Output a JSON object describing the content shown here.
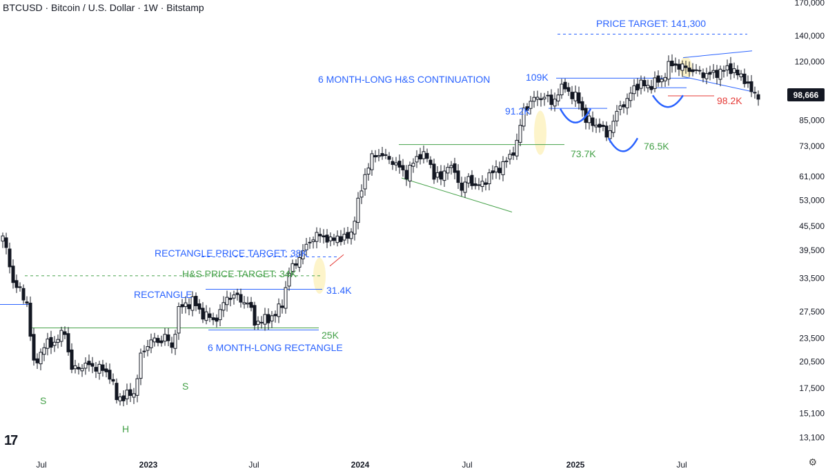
{
  "header": {
    "title": "BTCUSD · Bitcoin / U.S. Dollar · 1W · Bitstamp"
  },
  "colors": {
    "up": "#131722",
    "down": "#131722",
    "blue": "#2962ff",
    "green": "#43a047",
    "red": "#e53935",
    "highlight": "#fdf3c4"
  },
  "chart_data": {
    "type": "candlestick",
    "title": "BTCUSD · Bitcoin / U.S. Dollar · 1W · Bitstamp",
    "y_scale": "log",
    "ylim": [
      12500,
      170000
    ],
    "y_ticks": [
      13100,
      15100,
      17500,
      20500,
      23500,
      27500,
      33500,
      39500,
      45500,
      53000,
      61000,
      73000,
      85000,
      98666,
      120000,
      140000,
      170000
    ],
    "y_tick_labels": [
      "13,100",
      "15,100",
      "17,500",
      "20,500",
      "23,500",
      "27,500",
      "33,500",
      "39,500",
      "45,500",
      "53,000",
      "61,000",
      "73,000",
      "85,000",
      "98,666",
      "120,000",
      "140,000",
      "170,000"
    ],
    "x_labels": [
      "Jul",
      "2023",
      "Jul",
      "2024",
      "Jul",
      "2025",
      "Jul"
    ],
    "current_price": "98,666",
    "anchors": [
      [
        0,
        43000
      ],
      [
        3,
        33000
      ],
      [
        7,
        29000
      ],
      [
        9,
        20000
      ],
      [
        12,
        22500
      ],
      [
        15,
        23000
      ],
      [
        18,
        24500
      ],
      [
        20,
        19500
      ],
      [
        23,
        20000
      ],
      [
        26,
        20000
      ],
      [
        29,
        19500
      ],
      [
        31,
        19000
      ],
      [
        33,
        16500
      ],
      [
        36,
        16800
      ],
      [
        38,
        17000
      ],
      [
        40,
        21000
      ],
      [
        43,
        23500
      ],
      [
        45,
        22800
      ],
      [
        47,
        24000
      ],
      [
        49,
        22000
      ],
      [
        51,
        28000
      ],
      [
        53,
        28500
      ],
      [
        55,
        29500
      ],
      [
        57,
        27500
      ],
      [
        59,
        27000
      ],
      [
        61,
        26000
      ],
      [
        63,
        27500
      ],
      [
        65,
        30000
      ],
      [
        67,
        30200
      ],
      [
        69,
        29500
      ],
      [
        71,
        29000
      ],
      [
        73,
        26000
      ],
      [
        75,
        26000
      ],
      [
        77,
        26500
      ],
      [
        79,
        27000
      ],
      [
        81,
        29000
      ],
      [
        83,
        34500
      ],
      [
        85,
        37000
      ],
      [
        87,
        39000
      ],
      [
        89,
        42000
      ],
      [
        91,
        43000
      ],
      [
        93,
        43000
      ],
      [
        95,
        41500
      ],
      [
        97,
        43000
      ],
      [
        99,
        42000
      ],
      [
        101,
        44000
      ],
      [
        103,
        52000
      ],
      [
        105,
        62000
      ],
      [
        107,
        68000
      ],
      [
        109,
        70000
      ],
      [
        111,
        68000
      ],
      [
        113,
        67000
      ],
      [
        115,
        64000
      ],
      [
        117,
        62000
      ],
      [
        119,
        66000
      ],
      [
        121,
        70000
      ],
      [
        123,
        68000
      ],
      [
        125,
        62000
      ],
      [
        127,
        60000
      ],
      [
        129,
        66000
      ],
      [
        131,
        62000
      ],
      [
        133,
        57000
      ],
      [
        135,
        60000
      ],
      [
        137,
        58000
      ],
      [
        139,
        58000
      ],
      [
        141,
        62000
      ],
      [
        143,
        63000
      ],
      [
        145,
        66000
      ],
      [
        147,
        68000
      ],
      [
        149,
        75000
      ],
      [
        151,
        90000
      ],
      [
        153,
        95000
      ],
      [
        155,
        97000
      ],
      [
        157,
        98000
      ],
      [
        159,
        94000
      ],
      [
        161,
        100000
      ],
      [
        163,
        104000
      ],
      [
        165,
        98000
      ],
      [
        167,
        96000
      ],
      [
        169,
        85000
      ],
      [
        171,
        84000
      ],
      [
        173,
        82000
      ],
      [
        175,
        78000
      ],
      [
        177,
        84000
      ],
      [
        179,
        93000
      ],
      [
        181,
        95000
      ],
      [
        183,
        104000
      ],
      [
        185,
        105000
      ],
      [
        187,
        104000
      ],
      [
        189,
        106000
      ],
      [
        191,
        108000
      ],
      [
        193,
        117000
      ],
      [
        195,
        118000
      ],
      [
        197,
        116000
      ],
      [
        199,
        115000
      ],
      [
        201,
        113000
      ],
      [
        203,
        112000
      ],
      [
        205,
        111000
      ],
      [
        207,
        113000
      ],
      [
        209,
        114000
      ],
      [
        211,
        116000
      ],
      [
        213,
        111000
      ],
      [
        215,
        109000
      ],
      [
        217,
        100000
      ],
      [
        219,
        98666
      ]
    ],
    "levels": [
      {
        "label": "PRICE TARGET: 141,300",
        "value": 141300,
        "style": "dashed",
        "color": "blue"
      },
      {
        "label": "109K",
        "value": 109000,
        "style": "solid",
        "color": "blue"
      },
      {
        "label": "98.2K",
        "value": 98200,
        "style": "solid",
        "color": "red"
      },
      {
        "label": "91.2K",
        "value": 91200,
        "style": "solid",
        "color": "blue"
      },
      {
        "label": "73.7K",
        "value": 73700,
        "style": "solid",
        "color": "green"
      },
      {
        "label": "76.5K",
        "value": 76500,
        "style": "curve",
        "color": "green"
      },
      {
        "label": "RECTANGLE PRICE TARGET: 38K",
        "value": 38000,
        "style": "dashed",
        "color": "blue"
      },
      {
        "label": "H&S PRICE TARGET: 34K",
        "value": 34000,
        "style": "dashed",
        "color": "green"
      },
      {
        "label": "31.4K",
        "value": 31400,
        "style": "solid",
        "color": "blue"
      },
      {
        "label": "25K",
        "value": 25000,
        "style": "solid",
        "color": "green"
      }
    ],
    "annotations": [
      {
        "text": "6 MONTH-LONG H&S CONTINUATION",
        "color": "blue"
      },
      {
        "text": "RECTANGLE",
        "color": "blue"
      },
      {
        "text": "6 MONTH-LONG RECTANGLE",
        "color": "blue"
      },
      {
        "text": "S",
        "color": "green"
      },
      {
        "text": "H",
        "color": "green"
      },
      {
        "text": "S",
        "color": "green"
      }
    ]
  }
}
